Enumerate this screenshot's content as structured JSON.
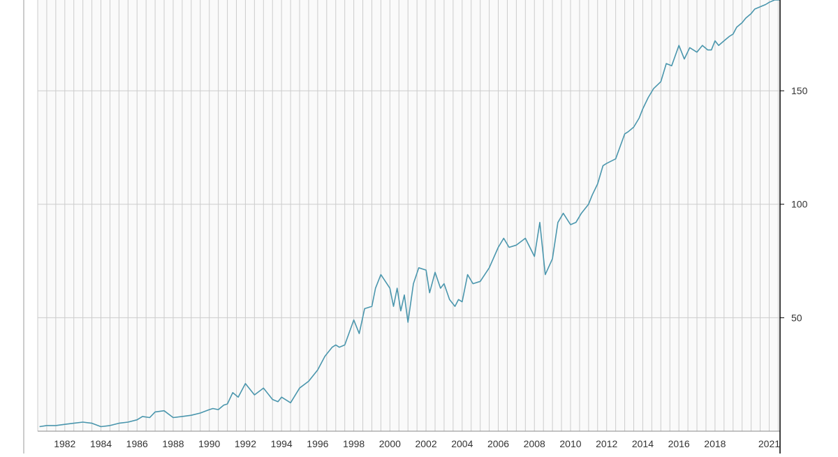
{
  "chart_data": {
    "type": "line",
    "title": "",
    "xlabel": "",
    "ylabel": "",
    "grid": true,
    "xlim": [
      1980.5,
      2021.6
    ],
    "ylim": [
      0,
      190
    ],
    "x_ticks": [
      1982,
      1984,
      1986,
      1988,
      1990,
      1992,
      1994,
      1996,
      1998,
      2000,
      2002,
      2004,
      2006,
      2008,
      2010,
      2012,
      2014,
      2016,
      2018,
      2021
    ],
    "x_tick_labels": [
      "1982",
      "1984",
      "1986",
      "1988",
      "1990",
      "1992",
      "1994",
      "1996",
      "1998",
      "2000",
      "2002",
      "2004",
      "2006",
      "2008",
      "2010",
      "2012",
      "2014",
      "2016",
      "2018",
      "2021"
    ],
    "y_ticks": [
      50,
      100,
      150
    ],
    "y_tick_labels": [
      "50",
      "100",
      "150"
    ],
    "colors": {
      "line": "#4a96ad",
      "plot_bg": "#fafafa",
      "grid": "#cccccc",
      "axis": "#000000"
    },
    "series": [
      {
        "x": [
          1980.6,
          1981.0,
          1981.5,
          1982.0,
          1982.5,
          1983.0,
          1983.5,
          1984.0,
          1984.5,
          1985.0,
          1985.5,
          1986.0,
          1986.3,
          1986.7,
          1987.0,
          1987.5,
          1988.0,
          1988.5,
          1989.0,
          1989.5,
          1990.0,
          1990.2,
          1990.5,
          1990.8,
          1991.0,
          1991.3,
          1991.6,
          1992.0,
          1992.5,
          1993.0,
          1993.5,
          1993.8,
          1994.0,
          1994.5,
          1995.0,
          1995.5,
          1996.0,
          1996.4,
          1996.8,
          1997.0,
          1997.2,
          1997.5,
          1998.0,
          1998.3,
          1998.6,
          1999.0,
          1999.2,
          1999.5,
          2000.0,
          2000.2,
          2000.4,
          2000.6,
          2000.8,
          2001.0,
          2001.3,
          2001.6,
          2002.0,
          2002.2,
          2002.5,
          2002.8,
          2003.0,
          2003.3,
          2003.6,
          2003.8,
          2004.0,
          2004.3,
          2004.6,
          2005.0,
          2005.5,
          2006.0,
          2006.3,
          2006.6,
          2007.0,
          2007.5,
          2008.0,
          2008.3,
          2008.6,
          2009.0,
          2009.3,
          2009.6,
          2010.0,
          2010.3,
          2010.6,
          2011.0,
          2011.2,
          2011.5,
          2011.8,
          2012.0,
          2012.5,
          2013.0,
          2013.2,
          2013.5,
          2013.8,
          2014.0,
          2014.3,
          2014.6,
          2015.0,
          2015.3,
          2015.6,
          2016.0,
          2016.3,
          2016.6,
          2017.0,
          2017.3,
          2017.6,
          2017.8,
          2018.0,
          2018.2,
          2018.5,
          2018.8,
          2019.0,
          2019.2,
          2019.5,
          2019.7,
          2020.0,
          2020.2,
          2020.5,
          2020.8,
          2021.0,
          2021.3,
          2021.6
        ],
        "y": [
          2,
          2.5,
          2.5,
          3,
          3.5,
          4,
          3.5,
          2,
          2.5,
          3.5,
          4,
          5,
          6.5,
          6,
          8.5,
          9,
          6,
          6.5,
          7,
          8,
          9.5,
          10,
          9.5,
          11.5,
          12,
          17,
          15,
          21,
          16,
          19,
          14,
          13,
          15,
          12.5,
          19,
          22,
          27,
          33,
          37,
          38,
          37,
          38,
          49,
          43,
          54,
          55,
          63,
          69,
          63,
          55,
          63,
          53,
          60,
          48,
          65,
          72,
          71,
          61,
          70,
          63,
          65,
          58,
          55,
          58,
          57,
          69,
          65,
          66,
          72,
          81,
          85,
          81,
          82,
          85,
          77,
          92,
          69,
          76,
          92,
          96,
          91,
          92,
          96,
          100,
          104,
          109,
          117,
          118,
          120,
          131,
          132,
          134,
          138,
          142,
          147,
          151,
          154,
          162,
          161,
          170,
          164,
          169,
          167,
          170,
          168,
          168,
          172,
          170,
          172,
          174,
          175,
          178,
          180,
          182,
          184,
          186,
          187,
          188,
          189,
          190,
          190
        ]
      }
    ]
  }
}
